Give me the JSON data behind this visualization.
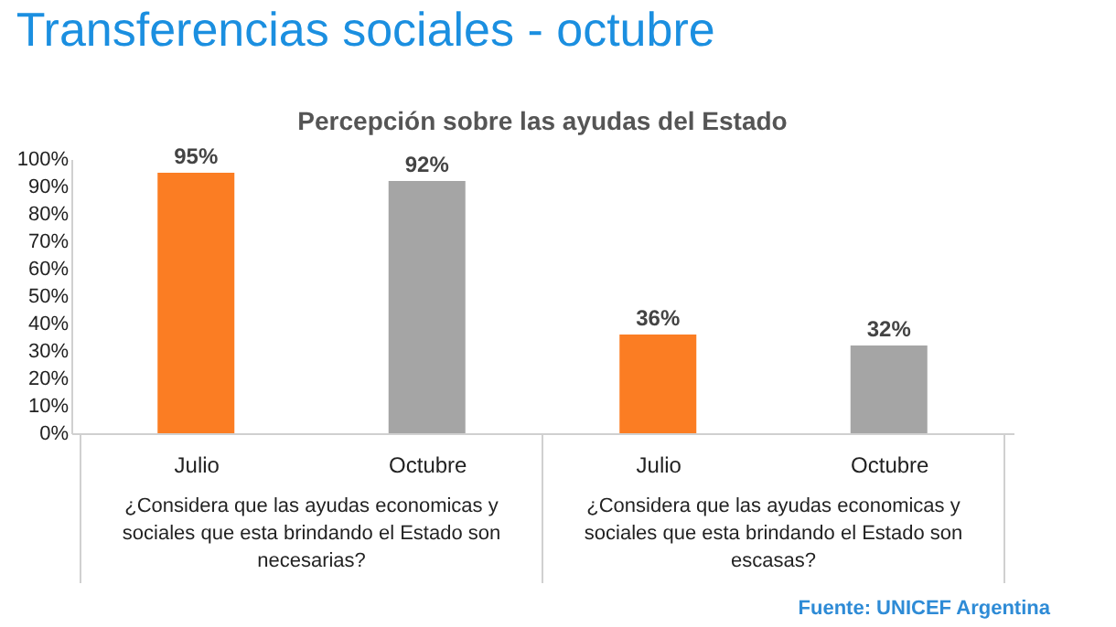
{
  "chart_data": {
    "type": "bar",
    "title": "Transferencias sociales - octubre",
    "subtitle": "Percepción sobre las ayudas del Estado",
    "categories": [
      "Julio",
      "Octubre",
      "Julio",
      "Octubre"
    ],
    "values": [
      95,
      92,
      36,
      32
    ],
    "colors": [
      "#fb7d23",
      "#a5a5a5",
      "#fb7d23",
      "#a5a5a5"
    ],
    "value_labels": [
      "95%",
      "92%",
      "36%",
      "32%"
    ],
    "ylim": [
      0,
      100
    ],
    "yticks": [
      {
        "value": 0,
        "label": "0%"
      },
      {
        "value": 10,
        "label": "10%"
      },
      {
        "value": 20,
        "label": "20%"
      },
      {
        "value": 30,
        "label": "30%"
      },
      {
        "value": 40,
        "label": "40%"
      },
      {
        "value": 50,
        "label": "50%"
      },
      {
        "value": 60,
        "label": "60%"
      },
      {
        "value": 70,
        "label": "70%"
      },
      {
        "value": 80,
        "label": "80%"
      },
      {
        "value": 90,
        "label": "90%"
      },
      {
        "value": 100,
        "label": "100%"
      }
    ],
    "annotations": [
      "¿Considera que las ayudas economicas y sociales que esta brindando el Estado son necesarias?",
      "¿Considera que las ayudas economicas y sociales que esta brindando el Estado son escasas?",
      "Fuente: UNICEF Argentina"
    ]
  }
}
